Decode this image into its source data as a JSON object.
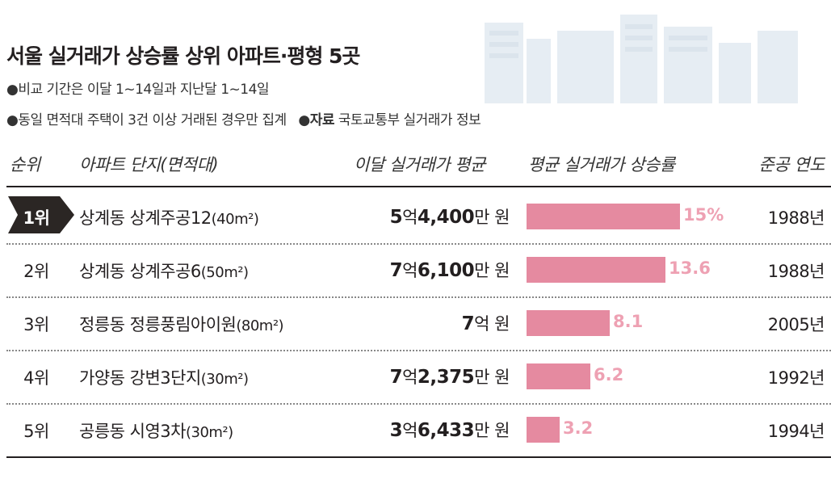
{
  "title": "서울 실거래가 상승률 상위 아파트·평형 5곳",
  "notes": {
    "n1": "●비교 기간은 이달 1~14일과 지난달 1~14일",
    "n2": "●동일 면적대 주택이 3건 이상 거래된 경우만 집계",
    "source_label": "●자료",
    "source_text": "국토교통부 실거래가 정보"
  },
  "headers": {
    "rank": "순위",
    "apt": "아파트 단지(면적대)",
    "price": "이달 실거래가 평균",
    "rate": "평균 실거래가 상승률",
    "year": "준공 연도"
  },
  "colors": {
    "bar": "#e58aa0",
    "pct": "#eea1b3",
    "badge": "#2b2624"
  },
  "chart_data": {
    "type": "table",
    "title": "서울 실거래가 상승률 상위 아파트·평형 5곳",
    "xlim": [
      0,
      15
    ],
    "rows": [
      {
        "rank": "1위",
        "complex": "상계동 상계주공12",
        "area": "(40m²)",
        "price_num": "5",
        "price_unit1": "억",
        "price_num2": "4,400",
        "price_unit2": "만 원",
        "rate": 15,
        "rate_label": "15%",
        "year": "1988년"
      },
      {
        "rank": "2위",
        "complex": "상계동 상계주공6",
        "area": "(50m²)",
        "price_num": "7",
        "price_unit1": "억",
        "price_num2": "6,100",
        "price_unit2": "만 원",
        "rate": 13.6,
        "rate_label": "13.6",
        "year": "1988년"
      },
      {
        "rank": "3위",
        "complex": "정릉동 정릉풍림아이원",
        "area": "(80m²)",
        "price_num": "7",
        "price_unit1": "억",
        "price_num2": "",
        "price_unit2": " 원",
        "rate": 8.1,
        "rate_label": "8.1",
        "year": "2005년"
      },
      {
        "rank": "4위",
        "complex": "가양동 강변3단지",
        "area": "(30m²)",
        "price_num": "7",
        "price_unit1": "억",
        "price_num2": "2,375",
        "price_unit2": "만 원",
        "rate": 6.2,
        "rate_label": "6.2",
        "year": "1992년"
      },
      {
        "rank": "5위",
        "complex": "공릉동 시영3차",
        "area": "(30m²)",
        "price_num": "3",
        "price_unit1": "억",
        "price_num2": "6,433",
        "price_unit2": "만 원",
        "rate": 3.2,
        "rate_label": "3.2",
        "year": "1994년"
      }
    ]
  }
}
